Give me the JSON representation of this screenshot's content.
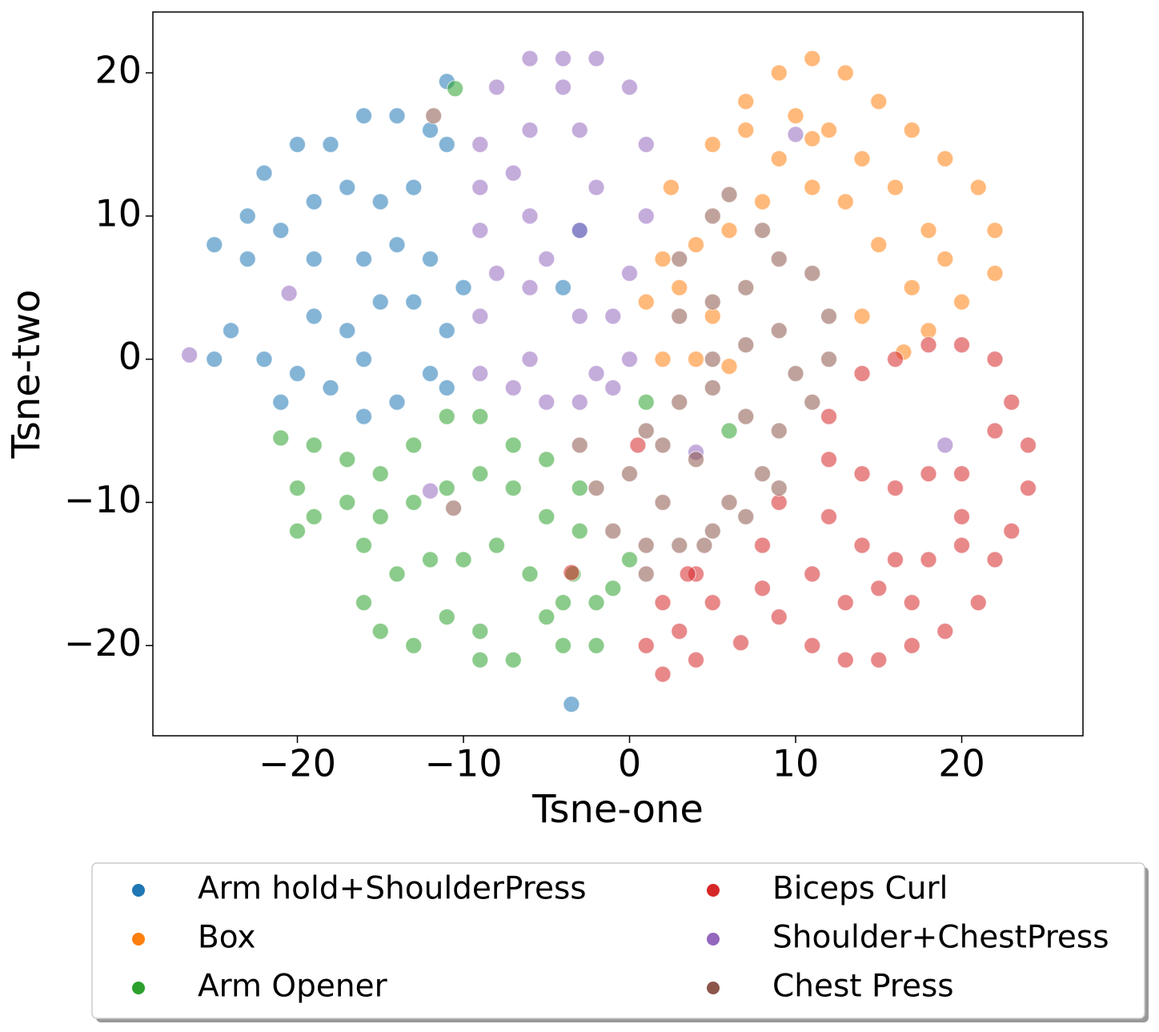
{
  "chart_data": {
    "type": "scatter",
    "x_label": "Tsne-one",
    "y_label": "Tsne-two",
    "xlim": [
      -28.7,
      27.3
    ],
    "ylim": [
      -26.3,
      24.25
    ],
    "xticks": [
      {
        "value": -20,
        "label": "−20"
      },
      {
        "value": -10,
        "label": "−10"
      },
      0,
      10,
      20
    ],
    "yticks": [
      {
        "value": -20,
        "label": "−20"
      },
      {
        "value": -10,
        "label": "−10"
      },
      0,
      10,
      20
    ],
    "grid": false,
    "legend": "below",
    "series": [
      {
        "name": "Arm hold+ShoulderPress",
        "color": "#1f77b4",
        "x": [
          -25,
          -23,
          -22,
          -20,
          -18,
          -16,
          -14,
          -12,
          -11,
          -11,
          -13,
          -15,
          -17,
          -19,
          -21,
          -23,
          -19,
          -16,
          -14,
          -12,
          -10,
          -11,
          -12,
          -14,
          -16,
          -18,
          -20,
          -21,
          -17,
          -15,
          -13,
          -19,
          -24,
          -25,
          -22,
          -16,
          -11,
          -3.5,
          -4,
          -3
        ],
        "y": [
          8,
          10,
          13,
          15,
          15,
          17,
          17,
          16,
          19.4,
          15,
          12,
          11,
          12,
          11,
          9,
          7,
          7,
          7,
          8,
          7,
          5,
          2,
          -1,
          -3,
          -4,
          -2,
          -1,
          -3,
          2,
          4,
          4,
          3,
          2,
          0,
          0,
          0,
          -2,
          -24.1,
          5,
          9
        ]
      },
      {
        "name": "Box",
        "color": "#ff7f0e",
        "x": [
          5,
          7,
          9,
          11,
          13,
          15,
          17,
          19,
          21,
          22,
          22,
          20,
          17,
          15,
          13,
          11,
          9,
          7,
          12,
          14,
          16,
          18,
          19,
          10,
          8,
          6,
          4,
          2,
          1,
          3,
          5,
          2,
          4,
          6,
          2.5,
          14,
          18,
          11,
          16.5
        ],
        "y": [
          15,
          18,
          20,
          21,
          20,
          18,
          16,
          14,
          12,
          9,
          6,
          4,
          5,
          8,
          11,
          12,
          14,
          16,
          16,
          14,
          12,
          9,
          7,
          17,
          11,
          9,
          8,
          7,
          4,
          5,
          3,
          0,
          0,
          -0.5,
          12,
          3,
          2,
          15.4,
          0.5
        ]
      },
      {
        "name": "Arm Opener",
        "color": "#2ca02c",
        "x": [
          -20,
          -19,
          -17,
          -15,
          -13,
          -11,
          -9,
          -7,
          -5,
          -3,
          -3,
          -5,
          -7,
          -9,
          -11,
          -13,
          -15,
          -17,
          -19,
          -20,
          -16,
          -14,
          -12,
          -10,
          -8,
          -6,
          -16,
          -15,
          -13,
          -11,
          -9,
          -7,
          -9,
          -5,
          -4,
          -2,
          -2,
          -4,
          -1,
          0,
          -3.4,
          6,
          1,
          -21,
          -10.5
        ],
        "y": [
          -9,
          -6,
          -7,
          -8,
          -6,
          -4,
          -4,
          -6,
          -7,
          -9,
          -12,
          -11,
          -9,
          -8,
          -9,
          -10,
          -11,
          -10,
          -11,
          -12,
          -13,
          -15,
          -14,
          -14,
          -13,
          -15,
          -17,
          -19,
          -20,
          -18,
          -19,
          -21,
          -21,
          -18,
          -20,
          -20,
          -17,
          -17,
          -16,
          -14,
          -15,
          -5,
          -3,
          -5.5,
          18.9
        ]
      },
      {
        "name": "Biceps Curl",
        "color": "#d62728",
        "x": [
          12,
          14,
          16,
          18,
          20,
          22,
          23,
          24,
          24,
          23,
          22,
          20,
          18,
          16,
          14,
          12,
          9,
          8,
          8,
          9,
          11,
          13,
          15,
          17,
          19,
          21,
          20,
          18,
          16,
          14,
          12,
          11,
          13,
          15,
          17,
          20,
          22,
          2,
          1,
          2,
          4,
          5,
          4,
          3,
          3.5,
          6.7,
          0.5,
          -3.5
        ],
        "y": [
          -4,
          -1,
          0,
          1,
          1,
          0,
          -3,
          -6,
          -9,
          -12,
          -14,
          -11,
          -8,
          -9,
          -8,
          -7,
          -10,
          -13,
          -16,
          -18,
          -20,
          -21,
          -21,
          -20,
          -19,
          -17,
          -13,
          -14,
          -14,
          -13,
          -11,
          -15,
          -17,
          -16,
          -17,
          -8,
          -5,
          -17,
          -20,
          -22,
          -21,
          -17,
          -15,
          -19,
          -15,
          -19.8,
          -6,
          -14.9
        ]
      },
      {
        "name": "Shoulder+ChestPress",
        "color": "#9467bd",
        "x": [
          -9,
          -8,
          -6,
          -4,
          -2,
          0,
          1,
          1,
          0,
          -1,
          0,
          -1,
          -3,
          -5,
          -7,
          -9,
          -9,
          -8,
          -9,
          -9,
          -6,
          -6,
          -6,
          -6,
          -3,
          -3,
          -3,
          -2,
          -7,
          -4,
          -5,
          -2,
          -26.5,
          -20.5,
          10,
          19,
          -12,
          4
        ],
        "y": [
          15,
          19,
          21,
          21,
          21,
          19,
          15,
          10,
          6,
          3,
          0,
          -2,
          -3,
          -3,
          -2,
          -1,
          3,
          6,
          9,
          12,
          16,
          10,
          5,
          0,
          16,
          9,
          3,
          12,
          13,
          19,
          7,
          -1,
          0.3,
          4.6,
          15.7,
          -6,
          -9.2,
          -6.5
        ]
      },
      {
        "name": "Chest Press",
        "color": "#8c564b",
        "x": [
          -3,
          -2,
          -1,
          1,
          3,
          2,
          0,
          1,
          3,
          5,
          7,
          9,
          11,
          12,
          12,
          11,
          9,
          7,
          5,
          3,
          5,
          7,
          9,
          10,
          8,
          6,
          5,
          7,
          9,
          4,
          2,
          5,
          6,
          3,
          1,
          4.5,
          -11.8,
          8,
          -10.6
        ],
        "y": [
          -6,
          -9,
          -12,
          -13,
          -13,
          -10,
          -8,
          -5,
          -3,
          -2,
          -4,
          -5,
          -3,
          0,
          3,
          6,
          7,
          5,
          4,
          3,
          0,
          1,
          2,
          -1,
          -8,
          -10,
          -12,
          -11,
          -9,
          -7,
          -6,
          10,
          11.5,
          7,
          -15,
          -13,
          17,
          9,
          -10.4
        ]
      }
    ]
  }
}
